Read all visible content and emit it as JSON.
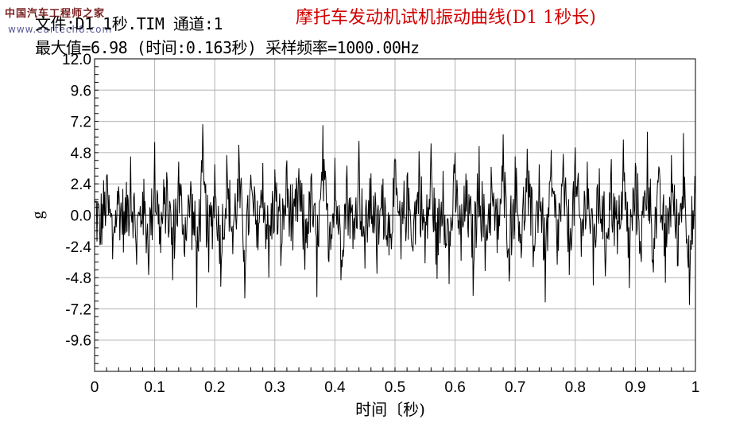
{
  "watermark": {
    "site_name_cn": "中国汽车工程师之家",
    "site_url": "www.eartech8.com"
  },
  "header": {
    "file_info": "文件:D1 1秒.TIM 通道:1",
    "max_info": "最大值=6.98 (时间:0.163秒) 采样频率=1000.00Hz"
  },
  "chart_data": {
    "type": "line",
    "title": "摩托车发动机试机振动曲线(D1 1秒长)",
    "xlabel": "时间〔秒)",
    "ylabel": "g",
    "xlim": [
      0,
      1
    ],
    "ylim": [
      -12,
      12
    ],
    "x_ticks": [
      "0",
      "0.1",
      "0.2",
      "0.3",
      "0.4",
      "0.5",
      "0.6",
      "0.7",
      "0.8",
      "0.9",
      "1"
    ],
    "y_ticks": [
      "12.0",
      "9.6",
      "7.2",
      "4.8",
      "2.4",
      "0.0",
      "-2.4",
      "-4.8",
      "-7.2",
      "-9.6"
    ],
    "grid": true,
    "series": [
      {
        "name": "通道1",
        "sample_rate_hz": 1000,
        "max_value": 6.98,
        "max_time_s": 0.163,
        "approx_range": [
          -7.2,
          7.0
        ],
        "description_values_sampled_every_10ms": [
          1.2,
          -2.1,
          3.0,
          -3.4,
          2.2,
          -1.5,
          4.5,
          -3.8,
          1.8,
          -4.6,
          5.6,
          -2.9,
          3.3,
          -5.0,
          4.1,
          -3.2,
          2.6,
          -7.1,
          6.98,
          -4.4,
          3.9,
          -5.5,
          4.6,
          -3.0,
          5.4,
          -6.4,
          3.1,
          -2.5,
          4.0,
          -4.8,
          3.5,
          -3.9,
          4.2,
          -2.7,
          3.6,
          -4.2,
          2.9,
          -6.3,
          6.9,
          -3.6,
          4.4,
          -5.0,
          3.8,
          -2.6,
          5.7,
          -4.1,
          3.2,
          -4.5,
          2.8,
          -3.1,
          4.3,
          -3.4,
          3.0,
          -2.8,
          4.9,
          -3.7,
          5.5,
          -4.9,
          3.4,
          -5.3,
          4.8,
          -3.5,
          2.7,
          -6.2,
          5.3,
          -4.3,
          3.7,
          -2.9,
          6.2,
          -5.1,
          4.5,
          -3.3,
          5.1,
          -4.0,
          3.9,
          -6.7,
          5.0,
          -3.8,
          4.7,
          -4.6,
          5.2,
          -3.2,
          4.1,
          -5.4,
          3.6,
          -4.7,
          4.3,
          -3.0,
          5.8,
          -5.6,
          4.0,
          -3.6,
          6.4,
          -4.4,
          3.5,
          -5.2,
          4.6,
          -3.9,
          6.3,
          -6.9,
          1.6
        ]
      }
    ]
  }
}
